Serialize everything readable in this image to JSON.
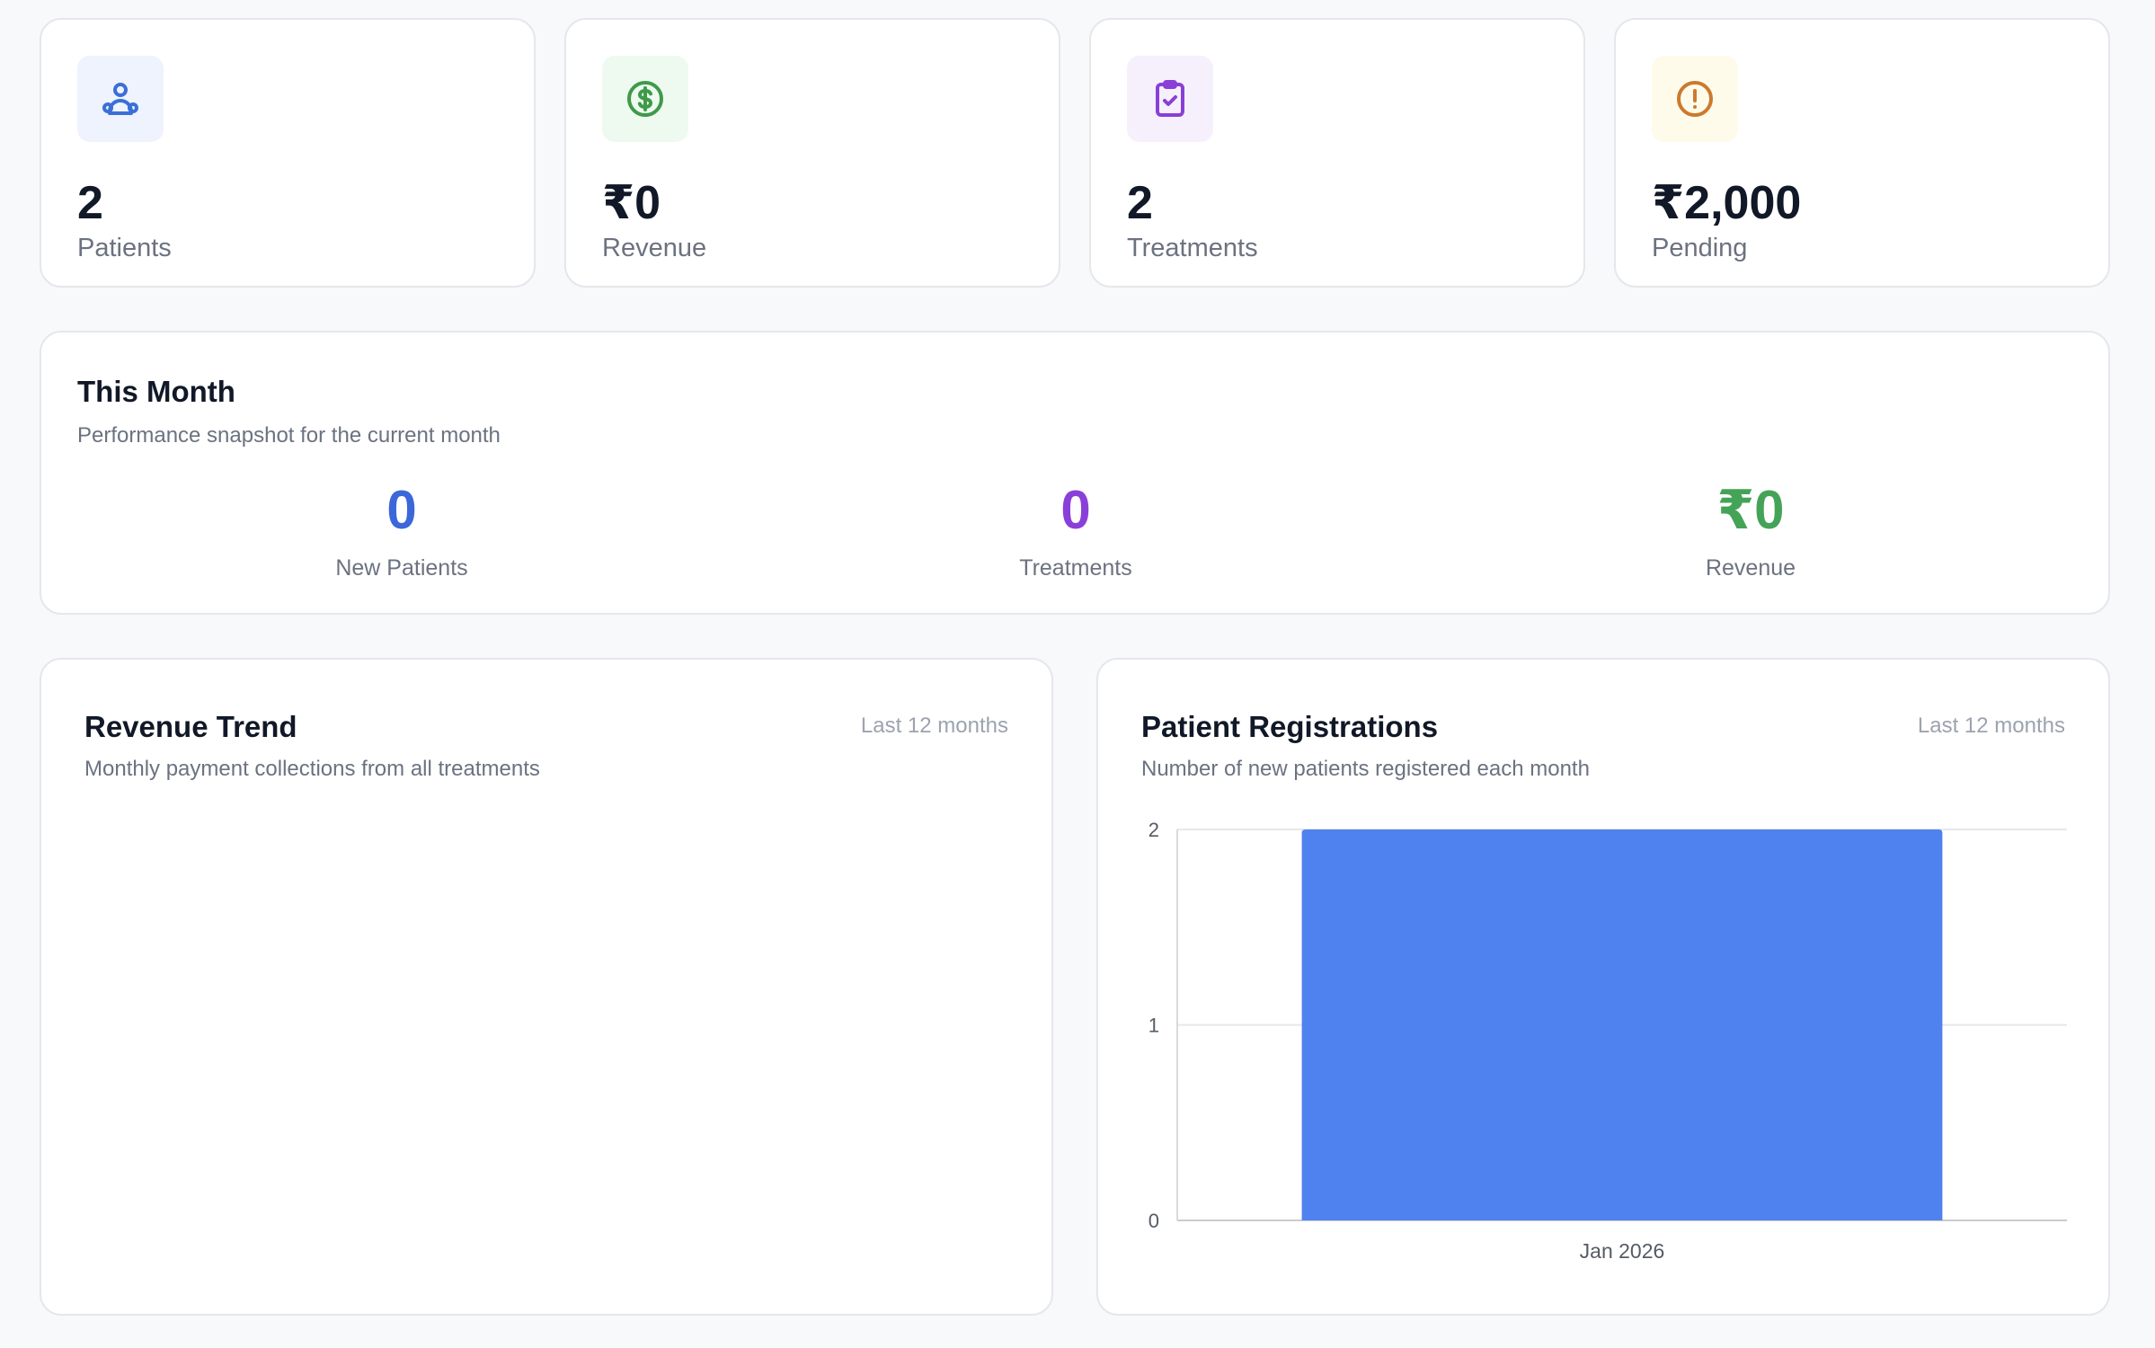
{
  "stats": [
    {
      "value": "2",
      "label": "Patients",
      "icon": "users-icon",
      "icon_color": "#3b6fd8",
      "icon_bg": "#eef3fd"
    },
    {
      "value": "₹0",
      "label": "Revenue",
      "icon": "dollar-circle-icon",
      "icon_color": "#3f9a4a",
      "icon_bg": "#eefaf0"
    },
    {
      "value": "2",
      "label": "Treatments",
      "icon": "clipboard-check-icon",
      "icon_color": "#8a3fd6",
      "icon_bg": "#f6f0fd"
    },
    {
      "value": "₹2,000",
      "label": "Pending",
      "icon": "alert-circle-icon",
      "icon_color": "#cc7a2e",
      "icon_bg": "#fefbea"
    }
  ],
  "this_month": {
    "title": "This Month",
    "subtitle": "Performance snapshot for the current month",
    "metrics": [
      {
        "value": "0",
        "label": "New Patients",
        "color": "#3b67d9"
      },
      {
        "value": "0",
        "label": "Treatments",
        "color": "#8b3fd9"
      },
      {
        "value": "₹0",
        "label": "Revenue",
        "color": "#45a357"
      }
    ]
  },
  "revenue_trend": {
    "title": "Revenue Trend",
    "range": "Last 12 months",
    "subtitle": "Monthly payment collections from all treatments"
  },
  "patient_registrations": {
    "title": "Patient Registrations",
    "range": "Last 12 months",
    "subtitle": "Number of new patients registered each month"
  },
  "chart_data": {
    "type": "bar",
    "title": "Patient Registrations",
    "categories": [
      "Jan 2026"
    ],
    "values": [
      2
    ],
    "ylim": [
      0,
      2
    ],
    "yticks": [
      0,
      1,
      2
    ],
    "bar_color": "#4f82ee",
    "grid": true,
    "xlabel": "",
    "ylabel": ""
  }
}
